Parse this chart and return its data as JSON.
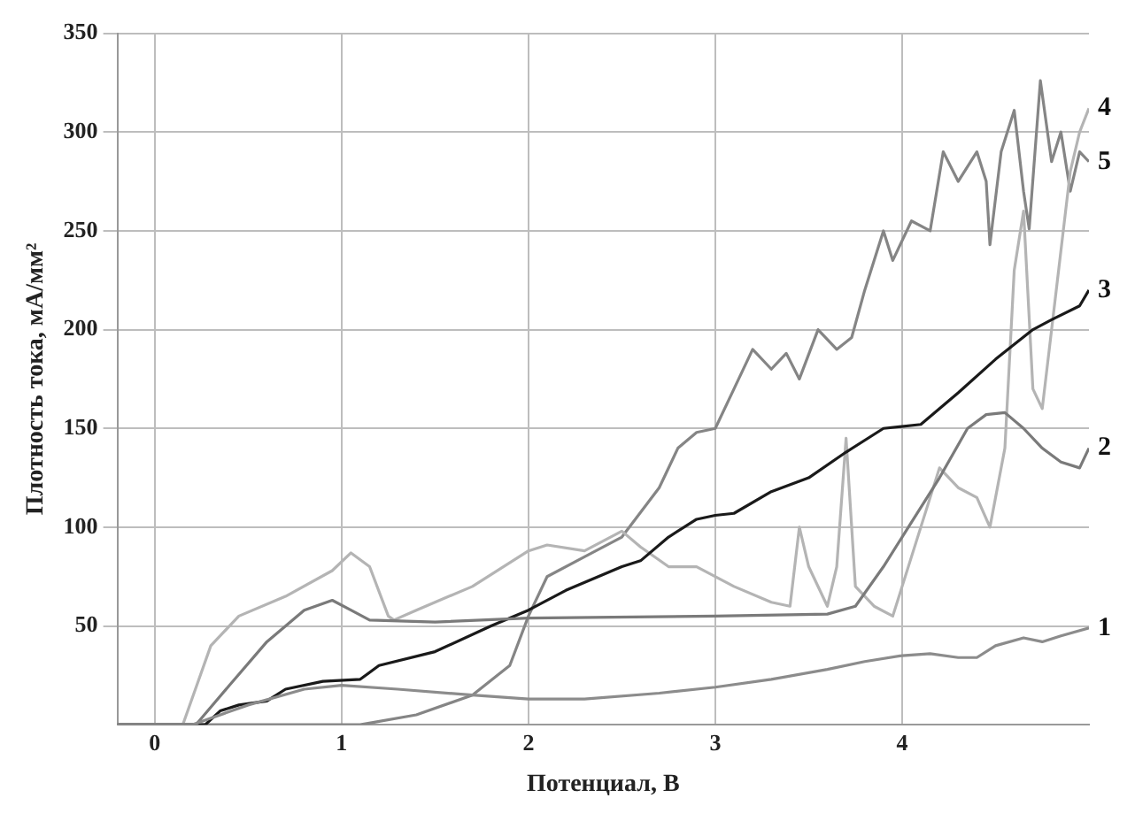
{
  "chart_data": {
    "type": "line",
    "xlabel": "Потенциал, В",
    "ylabel": "Плотность тока, мА/мм²",
    "xlim": [
      -0.2,
      5.0
    ],
    "xticks": [
      0,
      1,
      2,
      3,
      4
    ],
    "ylim": [
      0,
      350
    ],
    "yticks": [
      50,
      100,
      150,
      200,
      250,
      300,
      350
    ],
    "grid": true,
    "legend": false,
    "marker": "none",
    "line_style": "solid",
    "series": [
      {
        "name": "1",
        "color": "#8c8c8c",
        "x": [
          -0.2,
          0.2,
          0.5,
          0.8,
          1.0,
          1.3,
          1.7,
          2.0,
          2.3,
          2.7,
          3.0,
          3.3,
          3.6,
          3.8,
          4.0,
          4.15,
          4.3,
          4.4,
          4.5,
          4.65,
          4.75,
          4.85,
          5.0
        ],
        "values": [
          0,
          0,
          10,
          18,
          20,
          18,
          15,
          13,
          13,
          16,
          19,
          23,
          28,
          32,
          35,
          36,
          34,
          34,
          40,
          44,
          42,
          45,
          49
        ]
      },
      {
        "name": "2",
        "color": "#7a7a7a",
        "x": [
          -0.2,
          0.22,
          0.4,
          0.6,
          0.8,
          0.95,
          1.05,
          1.15,
          1.5,
          2.0,
          3.0,
          3.6,
          3.75,
          3.9,
          4.0,
          4.2,
          4.35,
          4.45,
          4.55,
          4.65,
          4.75,
          4.85,
          4.95,
          5.0
        ],
        "values": [
          0,
          0,
          20,
          42,
          58,
          63,
          58,
          53,
          52,
          54,
          55,
          56,
          60,
          80,
          95,
          125,
          150,
          157,
          158,
          150,
          140,
          133,
          130,
          140
        ]
      },
      {
        "name": "3",
        "color": "#1a1a1a",
        "x": [
          -0.2,
          0.27,
          0.35,
          0.45,
          0.6,
          0.7,
          0.9,
          1.1,
          1.2,
          1.5,
          1.8,
          2.0,
          2.2,
          2.5,
          2.6,
          2.75,
          2.9,
          3.0,
          3.1,
          3.3,
          3.5,
          3.7,
          3.9,
          4.1,
          4.3,
          4.5,
          4.7,
          4.8,
          4.95,
          5.0
        ],
        "values": [
          0,
          0,
          7,
          10,
          12,
          18,
          22,
          23,
          30,
          37,
          50,
          58,
          68,
          80,
          83,
          95,
          104,
          106,
          107,
          118,
          125,
          138,
          150,
          152,
          168,
          185,
          200,
          205,
          212,
          220
        ]
      },
      {
        "name": "4",
        "color": "#b4b4b4",
        "x": [
          -0.2,
          0.15,
          0.3,
          0.45,
          0.7,
          0.95,
          1.05,
          1.15,
          1.25,
          1.28,
          1.4,
          1.7,
          2.0,
          2.1,
          2.3,
          2.5,
          2.6,
          2.75,
          2.9,
          3.1,
          3.3,
          3.4,
          3.45,
          3.5,
          3.6,
          3.65,
          3.7,
          3.75,
          3.85,
          3.95,
          4.0,
          4.1,
          4.2,
          4.3,
          4.4,
          4.47,
          4.55,
          4.6,
          4.65,
          4.7,
          4.75,
          4.8,
          4.85,
          4.9,
          4.95,
          5.0
        ],
        "values": [
          0,
          0,
          40,
          55,
          65,
          78,
          87,
          80,
          55,
          53,
          58,
          70,
          88,
          91,
          88,
          98,
          90,
          80,
          80,
          70,
          62,
          60,
          100,
          80,
          60,
          80,
          145,
          70,
          60,
          55,
          70,
          100,
          130,
          120,
          115,
          100,
          140,
          230,
          260,
          170,
          160,
          200,
          240,
          280,
          300,
          312
        ]
      },
      {
        "name": "5",
        "color": "#858585",
        "x": [
          -0.2,
          1.1,
          1.4,
          1.7,
          1.9,
          2.0,
          2.1,
          2.3,
          2.5,
          2.7,
          2.8,
          2.9,
          3.0,
          3.1,
          3.2,
          3.3,
          3.38,
          3.45,
          3.55,
          3.65,
          3.73,
          3.8,
          3.9,
          3.95,
          4.05,
          4.15,
          4.22,
          4.3,
          4.4,
          4.45,
          4.47,
          4.53,
          4.6,
          4.65,
          4.68,
          4.74,
          4.8,
          4.85,
          4.9,
          4.95,
          5.0
        ],
        "values": [
          0,
          0,
          5,
          15,
          30,
          55,
          75,
          85,
          95,
          120,
          140,
          148,
          150,
          170,
          190,
          180,
          188,
          175,
          200,
          190,
          196,
          220,
          250,
          235,
          255,
          250,
          290,
          275,
          290,
          275,
          243,
          290,
          311,
          270,
          251,
          326,
          285,
          300,
          270,
          290,
          285
        ]
      }
    ]
  }
}
